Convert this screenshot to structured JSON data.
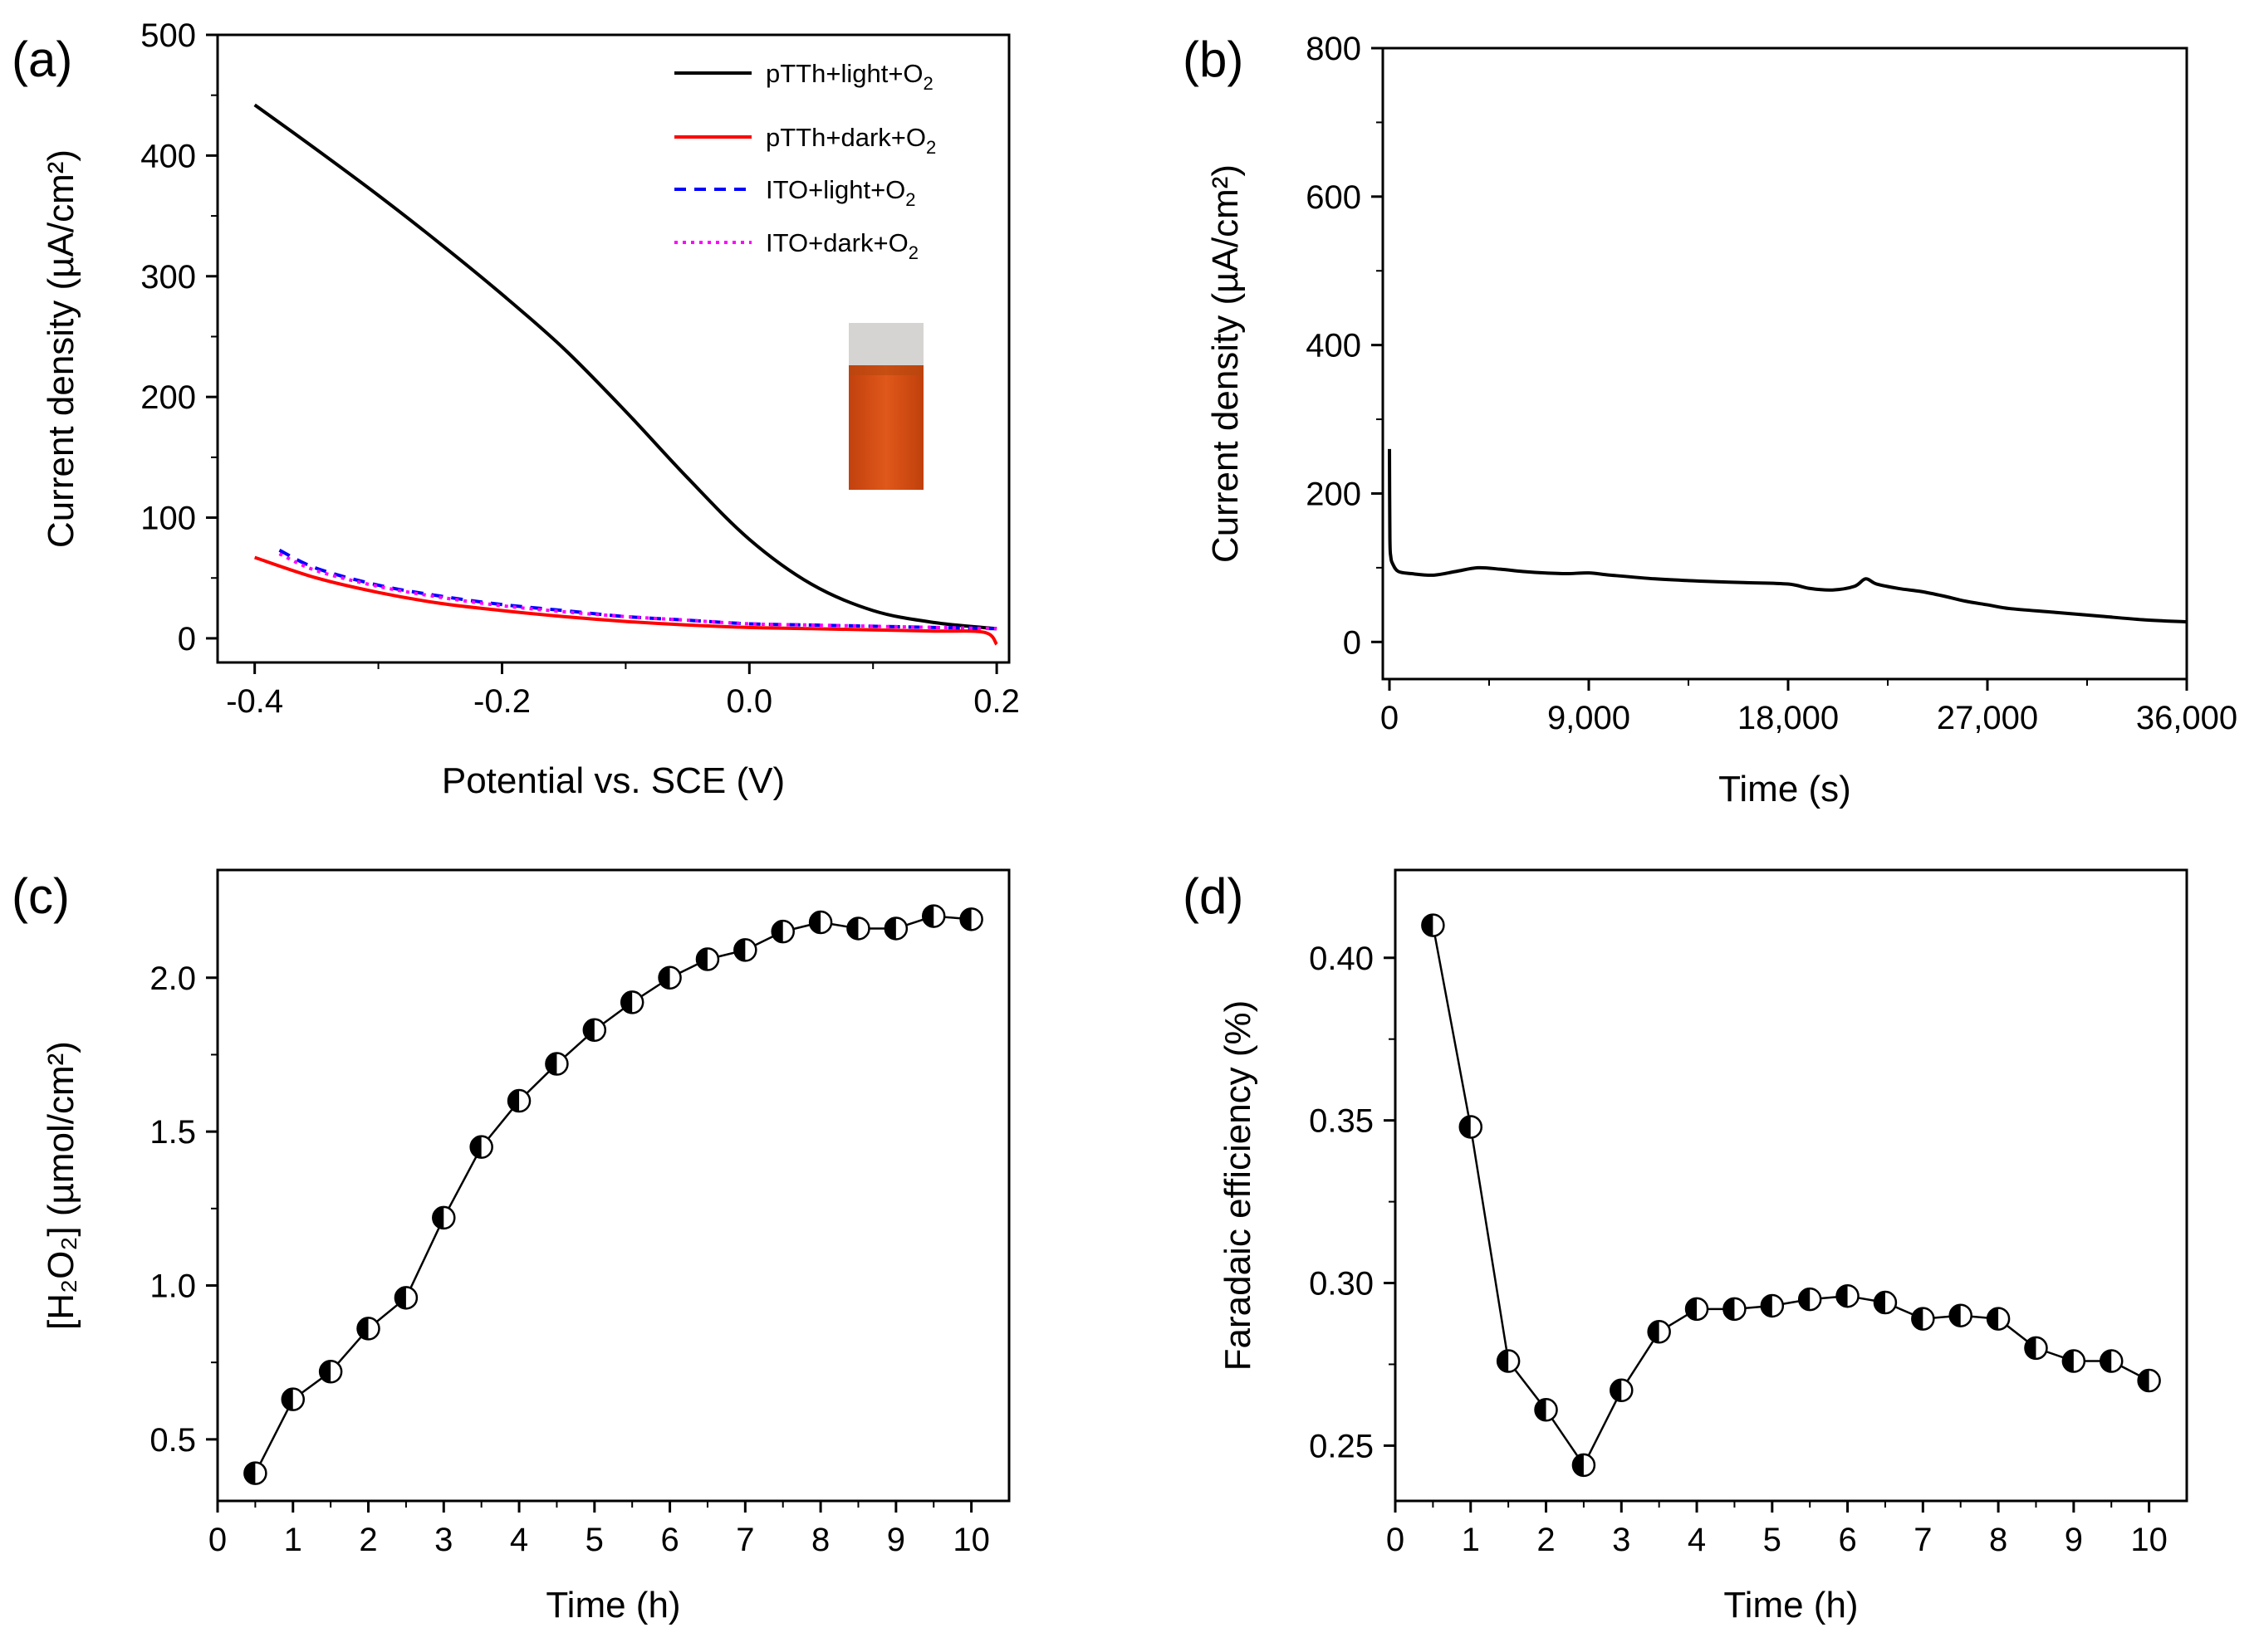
{
  "chart_data": [
    {
      "panel": "(a)",
      "type": "line",
      "xlabel": "Potential vs. SCE (V)",
      "ylabel": "Current density (µA/cm²)",
      "xlim": [
        -0.43,
        0.21
      ],
      "ylim": [
        -20,
        500
      ],
      "xticks": [
        -0.4,
        -0.2,
        0.0,
        0.2
      ],
      "xtick_labels": [
        "-0.4",
        "-0.2",
        "0.0",
        "0.2"
      ],
      "yticks": [
        0,
        100,
        200,
        300,
        400,
        500
      ],
      "ytick_labels": [
        "0",
        "100",
        "200",
        "300",
        "400",
        "500"
      ],
      "legend": "top-right",
      "inset": "photo of orange solution in vial",
      "series": [
        {
          "name": "pTTh+light+O₂",
          "label_main": "pTTh+light+O",
          "label_sub": "2",
          "color": "#000000",
          "dash": "solid",
          "x": [
            -0.4,
            -0.35,
            -0.3,
            -0.25,
            -0.2,
            -0.15,
            -0.1,
            -0.05,
            0.0,
            0.05,
            0.1,
            0.15,
            0.2
          ],
          "y": [
            442,
            405,
            367,
            327,
            285,
            240,
            188,
            133,
            82,
            45,
            23,
            13,
            8
          ]
        },
        {
          "name": "pTTh+dark+O₂",
          "label_main": "pTTh+dark+O",
          "label_sub": "2",
          "color": "#ff0000",
          "dash": "solid",
          "x": [
            -0.4,
            -0.35,
            -0.3,
            -0.25,
            -0.2,
            -0.15,
            -0.1,
            -0.05,
            0.0,
            0.05,
            0.1,
            0.15,
            0.19,
            0.2
          ],
          "y": [
            67,
            50,
            38,
            29,
            23,
            18,
            14,
            11,
            9,
            8,
            7,
            6,
            5,
            -5
          ]
        },
        {
          "name": "ITO+light+O₂",
          "label_main": "ITO+light+O",
          "label_sub": "2",
          "color": "#0000ff",
          "dash": "14,10",
          "x": [
            -0.38,
            -0.35,
            -0.3,
            -0.25,
            -0.2,
            -0.15,
            -0.1,
            -0.05,
            0.0,
            0.05,
            0.1,
            0.15,
            0.2
          ],
          "y": [
            73,
            58,
            44,
            35,
            28,
            23,
            18,
            15,
            12,
            11,
            10,
            9,
            8
          ]
        },
        {
          "name": "ITO+dark+O₂",
          "label_main": "ITO+dark+O",
          "label_sub": "2",
          "color": "#ff00ff",
          "dash": "4,6",
          "x": [
            -0.38,
            -0.35,
            -0.3,
            -0.25,
            -0.2,
            -0.15,
            -0.1,
            -0.05,
            0.0,
            0.05,
            0.1,
            0.15,
            0.2
          ],
          "y": [
            70,
            56,
            43,
            34,
            27,
            22,
            18,
            15,
            12,
            11,
            10,
            9,
            8
          ]
        }
      ]
    },
    {
      "panel": "(b)",
      "type": "line",
      "xlabel": "Time (s)",
      "ylabel": "Current density (µA/cm²)",
      "xlim": [
        -300,
        36000
      ],
      "ylim": [
        -50,
        800
      ],
      "xticks": [
        0,
        9000,
        18000,
        27000,
        36000
      ],
      "xtick_labels": [
        "0",
        "9,000",
        "18,000",
        "27,000",
        "36,000"
      ],
      "yticks": [
        0,
        200,
        400,
        600,
        800
      ],
      "ytick_labels": [
        "0",
        "200",
        "400",
        "600",
        "800"
      ],
      "series": [
        {
          "name": "current",
          "color": "#000000",
          "x": [
            0,
            20,
            60,
            150,
            400,
            1000,
            2000,
            3000,
            4000,
            5000,
            6000,
            7000,
            8000,
            9000,
            10000,
            12000,
            14000,
            16000,
            18000,
            19000,
            20000,
            21000,
            21500,
            22000,
            23000,
            24000,
            25000,
            26000,
            27000,
            28000,
            30000,
            32000,
            34000,
            36000
          ],
          "y": [
            260,
            140,
            115,
            105,
            95,
            92,
            90,
            95,
            100,
            98,
            95,
            93,
            92,
            93,
            90,
            85,
            82,
            80,
            78,
            72,
            70,
            75,
            85,
            78,
            72,
            68,
            62,
            55,
            50,
            45,
            40,
            35,
            30,
            27
          ]
        }
      ]
    },
    {
      "panel": "(c)",
      "type": "scatter",
      "xlabel": "Time (h)",
      "ylabel": "[H₂O₂] (µmol/cm²)",
      "xlim": [
        0,
        10.5
      ],
      "ylim": [
        0.3,
        2.35
      ],
      "xticks": [
        0,
        1,
        2,
        3,
        4,
        5,
        6,
        7,
        8,
        9,
        10
      ],
      "xtick_labels": [
        "0",
        "1",
        "2",
        "3",
        "4",
        "5",
        "6",
        "7",
        "8",
        "9",
        "10"
      ],
      "yticks": [
        0.5,
        1.0,
        1.5,
        2.0
      ],
      "ytick_labels": [
        "0.5",
        "1.0",
        "1.5",
        "2.0"
      ],
      "series": [
        {
          "name": "H2O2",
          "color": "#000000",
          "x": [
            0.5,
            1,
            1.5,
            2,
            2.5,
            3,
            3.5,
            4,
            4.5,
            5,
            5.5,
            6,
            6.5,
            7,
            7.5,
            8,
            8.5,
            9,
            9.5,
            10
          ],
          "y": [
            0.39,
            0.63,
            0.72,
            0.86,
            0.96,
            1.22,
            1.45,
            1.6,
            1.72,
            1.83,
            1.92,
            2.0,
            2.06,
            2.09,
            2.15,
            2.18,
            2.16,
            2.16,
            2.2,
            2.19
          ]
        }
      ]
    },
    {
      "panel": "(d)",
      "type": "scatter",
      "xlabel": "Time (h)",
      "ylabel": "Faradaic efficiency (%)",
      "xlim": [
        0,
        10.5
      ],
      "ylim": [
        0.233,
        0.427
      ],
      "xticks": [
        0,
        1,
        2,
        3,
        4,
        5,
        6,
        7,
        8,
        9,
        10
      ],
      "xtick_labels": [
        "0",
        "1",
        "2",
        "3",
        "4",
        "5",
        "6",
        "7",
        "8",
        "9",
        "10"
      ],
      "yticks": [
        0.25,
        0.3,
        0.35,
        0.4
      ],
      "ytick_labels": [
        "0.25",
        "0.30",
        "0.35",
        "0.40"
      ],
      "series": [
        {
          "name": "FE",
          "color": "#000000",
          "x": [
            0.5,
            1,
            1.5,
            2,
            2.5,
            3,
            3.5,
            4,
            4.5,
            5,
            5.5,
            6,
            6.5,
            7,
            7.5,
            8,
            8.5,
            9,
            9.5,
            10
          ],
          "y": [
            0.41,
            0.348,
            0.276,
            0.261,
            0.244,
            0.267,
            0.285,
            0.292,
            0.292,
            0.293,
            0.295,
            0.296,
            0.294,
            0.289,
            0.29,
            0.289,
            0.28,
            0.276,
            0.276,
            0.27
          ]
        }
      ]
    }
  ]
}
